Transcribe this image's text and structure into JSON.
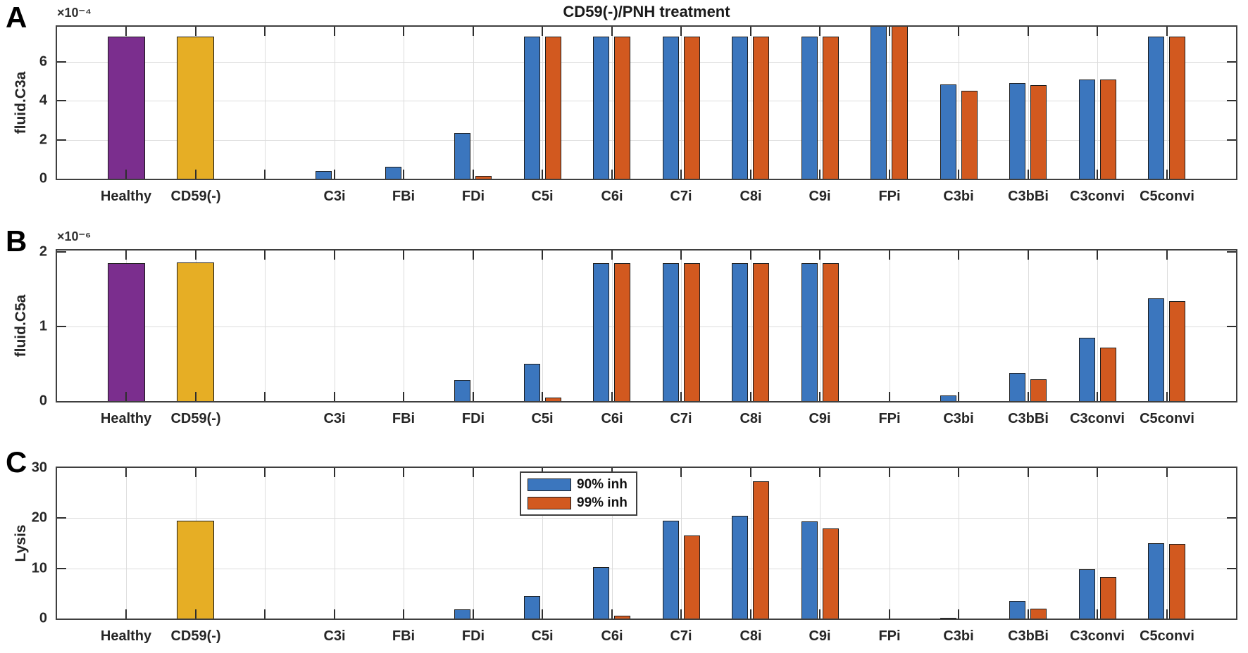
{
  "figure": {
    "title": "CD59(-)/PNH treatment",
    "background": "#ffffff",
    "panel_letters": [
      "A",
      "B",
      "C"
    ]
  },
  "colors": {
    "blue": "#3b76be",
    "orange": "#d2591f",
    "purple": "#7b2e8e",
    "gold": "#e6ae25",
    "axis_frame": "#3f3f3f",
    "grid": "#dcdcdc",
    "tick": "#2e2e2e",
    "text": "#262626"
  },
  "series": [
    {
      "name": "90% inh",
      "color": "blue"
    },
    {
      "name": "99% inh",
      "color": "orange"
    }
  ],
  "legend": {
    "entries": [
      {
        "label": "90% inh",
        "color": "blue"
      },
      {
        "label": "99% inh",
        "color": "orange"
      }
    ],
    "position": "inside panel C, upper area between C6i and C7i"
  },
  "chart_data": [
    {
      "panel": "A",
      "type": "bar",
      "title": "CD59(-)/PNH treatment",
      "ylabel": "fluid.C3a",
      "exponent": "×10⁻⁴",
      "ylim": [
        0,
        7.8
      ],
      "yticks": [
        0,
        2,
        4,
        6
      ],
      "grid": true,
      "groups": [
        {
          "label": "Healthy",
          "pos": 1,
          "bars": [
            {
              "color": "purple",
              "value": 7.3
            }
          ]
        },
        {
          "label": "CD59(-)",
          "pos": 2,
          "bars": [
            {
              "color": "gold",
              "value": 7.3
            }
          ]
        },
        {
          "label": "C3i",
          "pos": 4,
          "bars": [
            {
              "color": "blue",
              "value": 0.4
            },
            {
              "color": "orange",
              "value": 0
            }
          ]
        },
        {
          "label": "FBi",
          "pos": 5,
          "bars": [
            {
              "color": "blue",
              "value": 0.6
            },
            {
              "color": "orange",
              "value": 0
            }
          ]
        },
        {
          "label": "FDi",
          "pos": 6,
          "bars": [
            {
              "color": "blue",
              "value": 2.35
            },
            {
              "color": "orange",
              "value": 0.15
            }
          ]
        },
        {
          "label": "C5i",
          "pos": 7,
          "bars": [
            {
              "color": "blue",
              "value": 7.3
            },
            {
              "color": "orange",
              "value": 7.3
            }
          ]
        },
        {
          "label": "C6i",
          "pos": 8,
          "bars": [
            {
              "color": "blue",
              "value": 7.3
            },
            {
              "color": "orange",
              "value": 7.3
            }
          ]
        },
        {
          "label": "C7i",
          "pos": 9,
          "bars": [
            {
              "color": "blue",
              "value": 7.3
            },
            {
              "color": "orange",
              "value": 7.3
            }
          ]
        },
        {
          "label": "C8i",
          "pos": 10,
          "bars": [
            {
              "color": "blue",
              "value": 7.3
            },
            {
              "color": "orange",
              "value": 7.3
            }
          ]
        },
        {
          "label": "C9i",
          "pos": 11,
          "bars": [
            {
              "color": "blue",
              "value": 7.3
            },
            {
              "color": "orange",
              "value": 7.3
            }
          ]
        },
        {
          "label": "FPi",
          "pos": 12,
          "clipped_at_top": true,
          "bars": [
            {
              "color": "blue",
              "value": 7.9
            },
            {
              "color": "orange",
              "value": 7.9
            }
          ]
        },
        {
          "label": "C3bi",
          "pos": 13,
          "bars": [
            {
              "color": "blue",
              "value": 4.85
            },
            {
              "color": "orange",
              "value": 4.5
            }
          ]
        },
        {
          "label": "C3bBi",
          "pos": 14,
          "bars": [
            {
              "color": "blue",
              "value": 4.9
            },
            {
              "color": "orange",
              "value": 4.8
            }
          ]
        },
        {
          "label": "C3convi",
          "pos": 15,
          "bars": [
            {
              "color": "blue",
              "value": 5.1
            },
            {
              "color": "orange",
              "value": 5.1
            }
          ]
        },
        {
          "label": "C5convi",
          "pos": 16,
          "bars": [
            {
              "color": "blue",
              "value": 7.3
            },
            {
              "color": "orange",
              "value": 7.3
            }
          ]
        }
      ]
    },
    {
      "panel": "B",
      "type": "bar",
      "title": "",
      "ylabel": "fluid.C5a",
      "exponent": "×10⁻⁶",
      "ylim": [
        0,
        2.02
      ],
      "yticks": [
        0,
        1,
        2
      ],
      "grid": true,
      "groups": [
        {
          "label": "Healthy",
          "pos": 1,
          "bars": [
            {
              "color": "purple",
              "value": 1.85
            }
          ]
        },
        {
          "label": "CD59(-)",
          "pos": 2,
          "bars": [
            {
              "color": "gold",
              "value": 1.86
            }
          ]
        },
        {
          "label": "C3i",
          "pos": 4,
          "bars": [
            {
              "color": "blue",
              "value": 0
            },
            {
              "color": "orange",
              "value": 0
            }
          ]
        },
        {
          "label": "FBi",
          "pos": 5,
          "bars": [
            {
              "color": "blue",
              "value": 0
            },
            {
              "color": "orange",
              "value": 0
            }
          ]
        },
        {
          "label": "FDi",
          "pos": 6,
          "bars": [
            {
              "color": "blue",
              "value": 0.28
            },
            {
              "color": "orange",
              "value": 0
            }
          ]
        },
        {
          "label": "C5i",
          "pos": 7,
          "bars": [
            {
              "color": "blue",
              "value": 0.5
            },
            {
              "color": "orange",
              "value": 0.05
            }
          ]
        },
        {
          "label": "C6i",
          "pos": 8,
          "bars": [
            {
              "color": "blue",
              "value": 1.85
            },
            {
              "color": "orange",
              "value": 1.85
            }
          ]
        },
        {
          "label": "C7i",
          "pos": 9,
          "bars": [
            {
              "color": "blue",
              "value": 1.85
            },
            {
              "color": "orange",
              "value": 1.85
            }
          ]
        },
        {
          "label": "C8i",
          "pos": 10,
          "bars": [
            {
              "color": "blue",
              "value": 1.85
            },
            {
              "color": "orange",
              "value": 1.85
            }
          ]
        },
        {
          "label": "C9i",
          "pos": 11,
          "bars": [
            {
              "color": "blue",
              "value": 1.85
            },
            {
              "color": "orange",
              "value": 1.85
            }
          ]
        },
        {
          "label": "FPi",
          "pos": 12,
          "bars": [
            {
              "color": "blue",
              "value": 0
            },
            {
              "color": "orange",
              "value": 0
            }
          ]
        },
        {
          "label": "C3bi",
          "pos": 13,
          "bars": [
            {
              "color": "blue",
              "value": 0.08
            },
            {
              "color": "orange",
              "value": 0
            }
          ]
        },
        {
          "label": "C3bBi",
          "pos": 14,
          "bars": [
            {
              "color": "blue",
              "value": 0.38
            },
            {
              "color": "orange",
              "value": 0.29
            }
          ]
        },
        {
          "label": "C3convi",
          "pos": 15,
          "bars": [
            {
              "color": "blue",
              "value": 0.85
            },
            {
              "color": "orange",
              "value": 0.72
            }
          ]
        },
        {
          "label": "C5convi",
          "pos": 16,
          "bars": [
            {
              "color": "blue",
              "value": 1.38
            },
            {
              "color": "orange",
              "value": 1.34
            }
          ]
        }
      ]
    },
    {
      "panel": "C",
      "type": "bar",
      "title": "",
      "ylabel": "Lysis",
      "exponent": "",
      "ylim": [
        0,
        30
      ],
      "yticks": [
        0,
        10,
        20,
        30
      ],
      "grid": true,
      "has_legend": true,
      "groups": [
        {
          "label": "Healthy",
          "pos": 1,
          "bars": [
            {
              "color": "purple",
              "value": 0
            }
          ]
        },
        {
          "label": "CD59(-)",
          "pos": 2,
          "bars": [
            {
              "color": "gold",
              "value": 19.5
            }
          ]
        },
        {
          "label": "C3i",
          "pos": 4,
          "bars": [
            {
              "color": "blue",
              "value": 0
            },
            {
              "color": "orange",
              "value": 0
            }
          ]
        },
        {
          "label": "FBi",
          "pos": 5,
          "bars": [
            {
              "color": "blue",
              "value": 0
            },
            {
              "color": "orange",
              "value": 0
            }
          ]
        },
        {
          "label": "FDi",
          "pos": 6,
          "bars": [
            {
              "color": "blue",
              "value": 1.8
            },
            {
              "color": "orange",
              "value": 0
            }
          ]
        },
        {
          "label": "C5i",
          "pos": 7,
          "bars": [
            {
              "color": "blue",
              "value": 4.5
            },
            {
              "color": "orange",
              "value": 0
            }
          ]
        },
        {
          "label": "C6i",
          "pos": 8,
          "bars": [
            {
              "color": "blue",
              "value": 10.3
            },
            {
              "color": "orange",
              "value": 0.5
            }
          ]
        },
        {
          "label": "C7i",
          "pos": 9,
          "bars": [
            {
              "color": "blue",
              "value": 19.5
            },
            {
              "color": "orange",
              "value": 16.5
            }
          ]
        },
        {
          "label": "C8i",
          "pos": 10,
          "bars": [
            {
              "color": "blue",
              "value": 20.5
            },
            {
              "color": "orange",
              "value": 27.3
            }
          ]
        },
        {
          "label": "C9i",
          "pos": 11,
          "bars": [
            {
              "color": "blue",
              "value": 19.3
            },
            {
              "color": "orange",
              "value": 18
            }
          ]
        },
        {
          "label": "FPi",
          "pos": 12,
          "bars": [
            {
              "color": "blue",
              "value": 0
            },
            {
              "color": "orange",
              "value": 0
            }
          ]
        },
        {
          "label": "C3bi",
          "pos": 13,
          "bars": [
            {
              "color": "blue",
              "value": 0.2
            },
            {
              "color": "orange",
              "value": 0
            }
          ]
        },
        {
          "label": "C3bBi",
          "pos": 14,
          "bars": [
            {
              "color": "blue",
              "value": 3.5
            },
            {
              "color": "orange",
              "value": 2
            }
          ]
        },
        {
          "label": "C3convi",
          "pos": 15,
          "bars": [
            {
              "color": "blue",
              "value": 9.8
            },
            {
              "color": "orange",
              "value": 8.3
            }
          ]
        },
        {
          "label": "C5convi",
          "pos": 16,
          "bars": [
            {
              "color": "blue",
              "value": 15
            },
            {
              "color": "orange",
              "value": 14.8
            }
          ]
        }
      ]
    }
  ]
}
